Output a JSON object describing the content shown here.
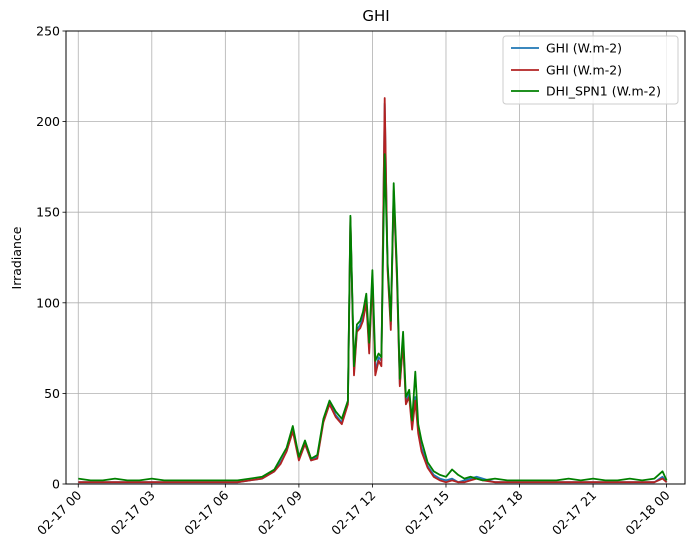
{
  "chart_data": {
    "type": "line",
    "title": "GHI",
    "xlabel": "",
    "ylabel": "Irradiance",
    "ylim": [
      0,
      250
    ],
    "xlim": [
      "2016-02-16 23:30",
      "2016-02-18 00:45"
    ],
    "grid": true,
    "legend_position": "top-right",
    "y_ticks": [
      0,
      50,
      100,
      150,
      200,
      250
    ],
    "x_ticks": [
      {
        "value": "02-17 00:00",
        "label": "02-17 00"
      },
      {
        "value": "02-17 03:00",
        "label": "02-17 03"
      },
      {
        "value": "02-17 06:00",
        "label": "02-17 06"
      },
      {
        "value": "02-17 09:00",
        "label": "02-17 09"
      },
      {
        "value": "02-17 12:00",
        "label": "02-17 12"
      },
      {
        "value": "02-17 15:00",
        "label": "02-17 15"
      },
      {
        "value": "02-17 18:00",
        "label": "02-17 18"
      },
      {
        "value": "02-17 21:00",
        "label": "02-17 21"
      },
      {
        "value": "02-18 00:00",
        "label": "02-18 00"
      }
    ],
    "x": [
      "02-17 00:00",
      "02-17 00:30",
      "02-17 01:00",
      "02-17 01:30",
      "02-17 02:00",
      "02-17 02:30",
      "02-17 03:00",
      "02-17 03:30",
      "02-17 04:00",
      "02-17 04:30",
      "02-17 05:00",
      "02-17 05:30",
      "02-17 06:00",
      "02-17 06:30",
      "02-17 07:00",
      "02-17 07:30",
      "02-17 08:00",
      "02-17 08:15",
      "02-17 08:30",
      "02-17 08:45",
      "02-17 09:00",
      "02-17 09:15",
      "02-17 09:30",
      "02-17 09:45",
      "02-17 10:00",
      "02-17 10:15",
      "02-17 10:30",
      "02-17 10:45",
      "02-17 11:00",
      "02-17 11:06",
      "02-17 11:15",
      "02-17 11:22",
      "02-17 11:30",
      "02-17 11:37",
      "02-17 11:45",
      "02-17 11:52",
      "02-17 12:00",
      "02-17 12:07",
      "02-17 12:15",
      "02-17 12:22",
      "02-17 12:30",
      "02-17 12:37",
      "02-17 12:45",
      "02-17 12:52",
      "02-17 13:00",
      "02-17 13:07",
      "02-17 13:15",
      "02-17 13:22",
      "02-17 13:30",
      "02-17 13:37",
      "02-17 13:45",
      "02-17 13:52",
      "02-17 14:00",
      "02-17 14:15",
      "02-17 14:30",
      "02-17 14:45",
      "02-17 15:00",
      "02-17 15:15",
      "02-17 15:30",
      "02-17 15:45",
      "02-17 16:00",
      "02-17 16:15",
      "02-17 16:30",
      "02-17 17:00",
      "02-17 17:30",
      "02-17 18:00",
      "02-17 18:30",
      "02-17 19:00",
      "02-17 19:30",
      "02-17 20:00",
      "02-17 20:30",
      "02-17 21:00",
      "02-17 21:30",
      "02-17 22:00",
      "02-17 22:30",
      "02-17 23:00",
      "02-17 23:30",
      "02-17 23:50",
      "02-18 00:00"
    ],
    "series": [
      {
        "name": "GHI (W.m-2)",
        "color": "#1f77b4",
        "values": [
          1,
          1,
          1,
          1,
          1,
          1,
          1,
          1,
          1,
          1,
          1,
          1,
          1,
          1,
          2,
          3,
          7,
          12,
          18,
          30,
          14,
          22,
          13,
          15,
          35,
          45,
          38,
          34,
          45,
          145,
          62,
          85,
          88,
          92,
          102,
          75,
          115,
          62,
          70,
          68,
          210,
          120,
          88,
          160,
          115,
          55,
          80,
          45,
          50,
          32,
          48,
          30,
          20,
          10,
          5,
          3,
          2,
          3,
          1,
          2,
          3,
          4,
          3,
          1,
          1,
          1,
          1,
          1,
          1,
          1,
          1,
          1,
          1,
          1,
          1,
          1,
          1,
          4,
          1
        ]
      },
      {
        "name": "GHI (W.m-2)",
        "color": "#b22222",
        "values": [
          1,
          1,
          1,
          1,
          1,
          1,
          1,
          1,
          1,
          1,
          1,
          1,
          1,
          1,
          2,
          3,
          7,
          11,
          18,
          29,
          13,
          22,
          13,
          14,
          34,
          44,
          37,
          33,
          44,
          147,
          60,
          84,
          86,
          90,
          100,
          72,
          113,
          60,
          68,
          65,
          213,
          118,
          85,
          162,
          112,
          54,
          78,
          44,
          48,
          30,
          46,
          28,
          18,
          9,
          4,
          2,
          1,
          2,
          1,
          1,
          2,
          3,
          2,
          1,
          1,
          1,
          1,
          1,
          1,
          1,
          1,
          1,
          1,
          1,
          1,
          1,
          1,
          3,
          1
        ]
      },
      {
        "name": "DHI_SPN1 (W.m-2)",
        "color": "#008000",
        "values": [
          3,
          2,
          2,
          3,
          2,
          2,
          3,
          2,
          2,
          2,
          2,
          2,
          2,
          2,
          3,
          4,
          8,
          14,
          20,
          32,
          15,
          24,
          14,
          16,
          36,
          46,
          40,
          36,
          46,
          148,
          65,
          88,
          90,
          95,
          105,
          78,
          118,
          68,
          72,
          70,
          182,
          122,
          90,
          166,
          118,
          58,
          84,
          48,
          52,
          35,
          62,
          33,
          24,
          12,
          7,
          5,
          4,
          8,
          5,
          3,
          4,
          3,
          2,
          3,
          2,
          2,
          2,
          2,
          2,
          3,
          2,
          3,
          2,
          2,
          3,
          2,
          3,
          7,
          2
        ]
      }
    ]
  }
}
